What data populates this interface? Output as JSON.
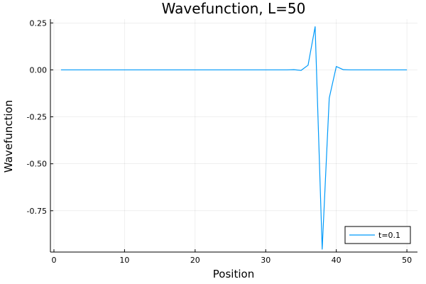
{
  "chart_data": {
    "type": "line",
    "title": "Wavefunction, L=50",
    "xlabel": "Position",
    "ylabel": "Wavefunction",
    "xlim": [
      -0.5,
      51.5
    ],
    "ylim": [
      -0.97,
      0.27
    ],
    "xticks": [
      0,
      10,
      20,
      30,
      40,
      50
    ],
    "xtick_labels": [
      "0",
      "10",
      "20",
      "30",
      "40",
      "50"
    ],
    "yticks": [
      0.25,
      0.0,
      -0.25,
      -0.5,
      -0.75
    ],
    "ytick_labels": [
      "0.25",
      "0.00",
      "-0.25",
      "-0.50",
      "-0.75"
    ],
    "grid": true,
    "legend_position": "bottom-right",
    "series": [
      {
        "name": "t=0.1",
        "color": "#009AFA",
        "x": [
          1,
          2,
          3,
          4,
          5,
          6,
          7,
          8,
          9,
          10,
          11,
          12,
          13,
          14,
          15,
          16,
          17,
          18,
          19,
          20,
          21,
          22,
          23,
          24,
          25,
          26,
          27,
          28,
          29,
          30,
          31,
          32,
          33,
          34,
          35,
          36,
          37,
          38,
          39,
          40,
          41,
          42,
          43,
          44,
          45,
          46,
          47,
          48,
          49,
          50
        ],
        "y": [
          0,
          0,
          0,
          0,
          0,
          0,
          0,
          0,
          0,
          0,
          0,
          0,
          0,
          0,
          0,
          0,
          0,
          0,
          0,
          0,
          0,
          0,
          0,
          0,
          0,
          0,
          0,
          0,
          0,
          0,
          0,
          0,
          0,
          0.001,
          -0.003,
          0.025,
          0.23,
          -0.955,
          -0.15,
          0.018,
          0.001,
          0,
          0,
          0,
          0,
          0,
          0,
          0,
          0,
          0
        ]
      }
    ]
  }
}
